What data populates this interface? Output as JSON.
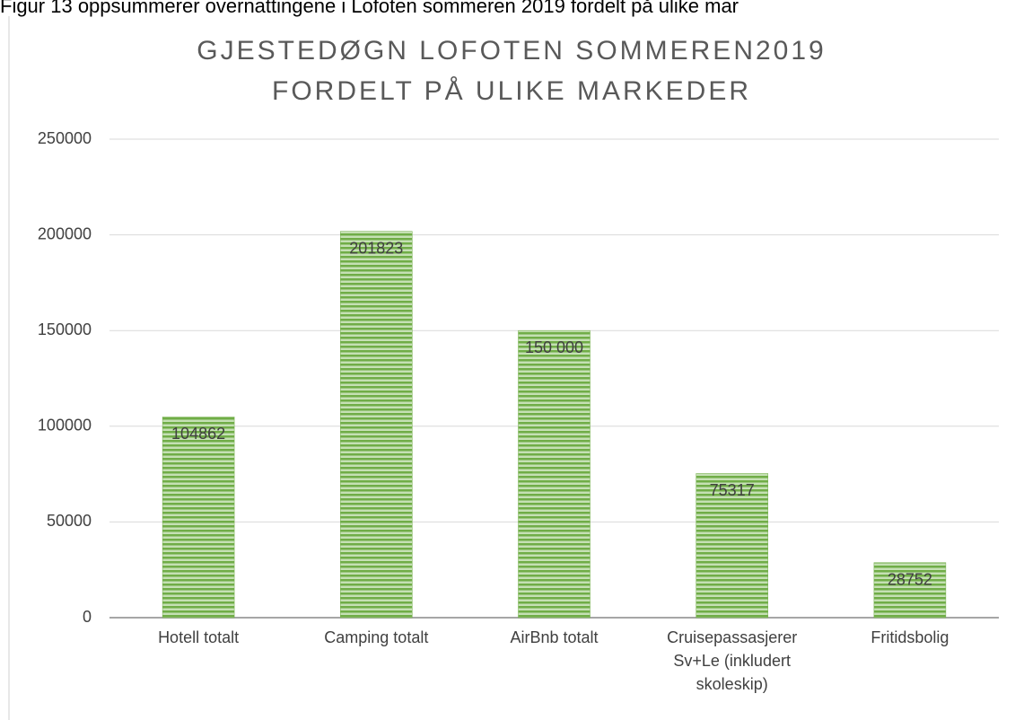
{
  "chart_data": {
    "type": "bar",
    "caption": "Figur 13 oppsummerer overnattingene i Lofoten sommeren 2019 fordelt på ulike mar",
    "title": [
      "GJESTEDØGN LOFOTEN SOMMEREN2019",
      "FORDELT PÅ ULIKE MARKEDER"
    ],
    "categories": [
      "Hotell totalt",
      "Camping totalt",
      "AirBnb totalt",
      "Cruisepassasjerer Sv+Le (inkludert skoleskip)",
      "Fritidsbolig"
    ],
    "values": [
      104862,
      201823,
      150000,
      75317,
      28752
    ],
    "value_labels": [
      "104862",
      "201823",
      "150 000",
      "75317",
      "28752"
    ],
    "color": "#70ad47",
    "ylim": [
      0,
      250000
    ],
    "yticks": [
      0,
      50000,
      100000,
      150000,
      200000,
      250000
    ],
    "grid": true
  }
}
